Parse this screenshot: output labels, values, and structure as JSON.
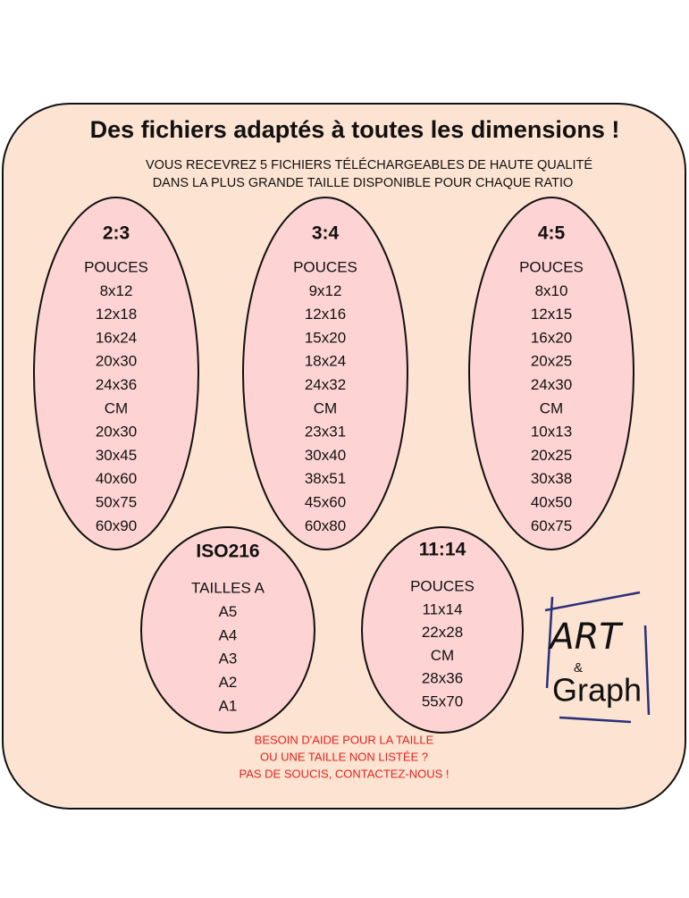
{
  "header": {
    "title": "Des fichiers adaptés à toutes les dimensions !",
    "subtitle": [
      "VOUS RECEVREZ 5 FICHIERS TÉLÉCHARGEABLES DE HAUTE QUALITÉ",
      "DANS LA PLUS GRANDE TAILLE DISPONIBLE POUR CHAQUE RATIO"
    ]
  },
  "groups": [
    {
      "ratio": "2:3",
      "sections": [
        {
          "unit": "POUCES",
          "sizes": [
            "8x12",
            "12x18",
            "16x24",
            "20x30",
            "24x36"
          ]
        },
        {
          "unit": "CM",
          "sizes": [
            "20x30",
            "30x45",
            "40x60",
            "50x75",
            "60x90"
          ]
        }
      ]
    },
    {
      "ratio": "3:4",
      "sections": [
        {
          "unit": "POUCES",
          "sizes": [
            "9x12",
            "12x16",
            "15x20",
            "18x24",
            "24x32"
          ]
        },
        {
          "unit": "CM",
          "sizes": [
            "23x31",
            "30x40",
            "38x51",
            "45x60",
            "60x80"
          ]
        }
      ]
    },
    {
      "ratio": "4:5",
      "sections": [
        {
          "unit": "POUCES",
          "sizes": [
            "8x10",
            "12x15",
            "16x20",
            "20x25",
            "24x30"
          ]
        },
        {
          "unit": "CM",
          "sizes": [
            "10x13",
            "20x25",
            "30x38",
            "40x50",
            "60x75"
          ]
        }
      ]
    },
    {
      "ratio": "ISO216",
      "sections": [
        {
          "unit": "TAILLES A",
          "sizes": [
            "A5",
            "A4",
            "A3",
            "A2",
            "A1"
          ]
        }
      ]
    },
    {
      "ratio": "11:14",
      "sections": [
        {
          "unit": "POUCES",
          "sizes": [
            "11x14",
            "22x28"
          ]
        },
        {
          "unit": "CM",
          "sizes": [
            "28x36",
            "55x70"
          ]
        }
      ]
    }
  ],
  "footer": {
    "help": [
      "BESOIN D'AIDE POUR LA TAILLE",
      "OU UNE TAILLE NON LISTÉE ?",
      "PAS DE SOUCIS, CONTACTEZ-NOUS !"
    ]
  },
  "logo": [
    "ART",
    "&",
    "Graph"
  ]
}
